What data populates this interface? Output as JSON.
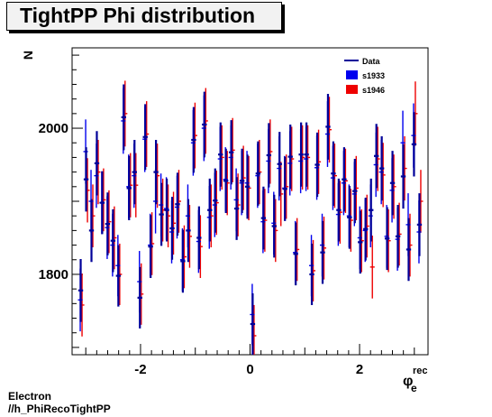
{
  "title": "TightPP Phi distribution",
  "footer": {
    "line1": "Electron",
    "line2": "//h_PhiRecoTightPP"
  },
  "chart_data": {
    "type": "scatter",
    "title": "TightPP Phi distribution",
    "xlabel_main": "φ",
    "xlabel_sub": "e",
    "xlabel_sup": "rec",
    "ylabel": "N",
    "xlim": [
      -3.25,
      3.25
    ],
    "ylim": [
      1690,
      2110
    ],
    "xticks": [
      -2,
      0,
      2
    ],
    "yticks": [
      1800,
      2000
    ],
    "legend": {
      "position": "top-right",
      "entries": [
        "Data",
        "s1933",
        "s1946"
      ]
    },
    "colors": {
      "Data": "#000099",
      "s1933": "#0000ee",
      "s1946": "#ee0000"
    },
    "bin_width": 0.0982,
    "series": [
      {
        "name": "Data",
        "x": [
          -3.093,
          -2.994,
          -2.896,
          -2.798,
          -2.7,
          -2.601,
          -2.503,
          -2.405,
          -2.307,
          -2.209,
          -2.11,
          -2.012,
          -1.914,
          -1.816,
          -1.718,
          -1.619,
          -1.521,
          -1.423,
          -1.325,
          -1.227,
          -1.128,
          -1.03,
          -0.932,
          -0.834,
          -0.736,
          -0.637,
          -0.539,
          -0.441,
          -0.343,
          -0.245,
          -0.146,
          -0.048,
          0.048,
          0.146,
          0.245,
          0.343,
          0.441,
          0.539,
          0.637,
          0.736,
          0.834,
          0.932,
          1.03,
          1.128,
          1.227,
          1.325,
          1.423,
          1.521,
          1.619,
          1.718,
          1.816,
          1.914,
          2.012,
          2.11,
          2.209,
          2.307,
          2.405,
          2.503,
          2.601,
          2.7,
          2.798,
          2.896,
          2.994,
          3.093
        ],
        "y": [
          1778,
          1930,
          1860,
          1952,
          1898,
          1869,
          1846,
          1798,
          2015,
          1918,
          1940,
          1768,
          1988,
          1838,
          1940,
          1882,
          1888,
          1863,
          1896,
          1818,
          1860,
          1984,
          1850,
          2005,
          1888,
          1901,
          1964,
          1928,
          1967,
          1890,
          1928,
          1920,
          1732,
          1938,
          1877,
          1963,
          1866,
          1951,
          1917,
          1961,
          1828,
          1964,
          1964,
          1800,
          1950,
          1830,
          2002,
          1938,
          1888,
          1930,
          1878,
          1914,
          1844,
          1862,
          1888,
          1962,
          1945,
          1849,
          1925,
          1852,
          1934,
          1834,
          1978,
          1868
        ],
        "err": [
          43,
          44,
          43,
          44,
          43,
          43,
          43,
          42,
          45,
          44,
          44,
          42,
          45,
          43,
          44,
          43,
          43,
          43,
          43,
          43,
          43,
          45,
          43,
          45,
          43,
          44,
          44,
          44,
          44,
          43,
          44,
          44,
          42,
          44,
          43,
          44,
          43,
          44,
          44,
          44,
          43,
          44,
          44,
          42,
          44,
          43,
          45,
          44,
          43,
          44,
          43,
          44,
          43,
          43,
          43,
          44,
          44,
          43,
          44,
          43,
          44,
          43,
          44,
          43
        ]
      },
      {
        "name": "s1933",
        "x": [
          -3.093,
          -2.994,
          -2.896,
          -2.798,
          -2.7,
          -2.601,
          -2.503,
          -2.405,
          -2.307,
          -2.209,
          -2.11,
          -2.012,
          -1.914,
          -1.816,
          -1.718,
          -1.619,
          -1.521,
          -1.423,
          -1.325,
          -1.227,
          -1.128,
          -1.03,
          -0.932,
          -0.834,
          -0.736,
          -0.637,
          -0.539,
          -0.441,
          -0.343,
          -0.245,
          -0.146,
          -0.048,
          0.048,
          0.146,
          0.245,
          0.343,
          0.441,
          0.539,
          0.637,
          0.736,
          0.834,
          0.932,
          1.03,
          1.128,
          1.227,
          1.325,
          1.423,
          1.521,
          1.619,
          1.718,
          1.816,
          1.914,
          2.012,
          2.11,
          2.209,
          2.307,
          2.405,
          2.503,
          2.601,
          2.7,
          2.798,
          2.896,
          2.994,
          3.093
        ],
        "y": [
          1765,
          1968,
          1900,
          1935,
          1898,
          1864,
          1840,
          1812,
          2010,
          1920,
          1935,
          1790,
          1985,
          1840,
          1900,
          1895,
          1890,
          1858,
          1892,
          1820,
          1880,
          1980,
          1845,
          2000,
          1878,
          1895,
          1958,
          1930,
          1960,
          1902,
          1925,
          1925,
          1745,
          1935,
          1872,
          1955,
          1870,
          1945,
          1918,
          1952,
          1830,
          1955,
          1958,
          1812,
          1946,
          1840,
          1992,
          1932,
          1882,
          1925,
          1880,
          1910,
          1850,
          1860,
          1880,
          1950,
          1940,
          1852,
          1915,
          1848,
          1980,
          1868,
          1990,
          1858
        ],
        "err": [
          43,
          44,
          43,
          44,
          43,
          43,
          43,
          42,
          45,
          44,
          44,
          42,
          45,
          43,
          44,
          43,
          43,
          43,
          43,
          43,
          43,
          45,
          43,
          45,
          43,
          44,
          44,
          44,
          44,
          43,
          44,
          44,
          42,
          44,
          43,
          44,
          43,
          44,
          44,
          44,
          43,
          44,
          44,
          42,
          44,
          43,
          45,
          44,
          43,
          44,
          43,
          44,
          43,
          43,
          43,
          44,
          44,
          43,
          44,
          43,
          44,
          43,
          44,
          43
        ]
      },
      {
        "name": "s1946",
        "x": [
          -3.093,
          -2.994,
          -2.896,
          -2.798,
          -2.7,
          -2.601,
          -2.503,
          -2.405,
          -2.307,
          -2.209,
          -2.11,
          -2.012,
          -1.914,
          -1.816,
          -1.718,
          -1.619,
          -1.521,
          -1.423,
          -1.325,
          -1.227,
          -1.128,
          -1.03,
          -0.932,
          -0.834,
          -0.736,
          -0.637,
          -0.539,
          -0.441,
          -0.343,
          -0.245,
          -0.146,
          -0.048,
          0.048,
          0.146,
          0.245,
          0.343,
          0.441,
          0.539,
          0.637,
          0.736,
          0.834,
          0.932,
          1.03,
          1.128,
          1.227,
          1.325,
          1.423,
          1.521,
          1.619,
          1.718,
          1.816,
          1.914,
          2.012,
          2.11,
          2.209,
          2.307,
          2.405,
          2.503,
          2.601,
          2.7,
          2.798,
          2.896,
          2.994,
          3.093
        ],
        "y": [
          1758,
          1915,
          1880,
          1940,
          1902,
          1872,
          1850,
          1800,
          2020,
          1922,
          1922,
          1773,
          1992,
          1842,
          1935,
          1888,
          1880,
          1870,
          1900,
          1824,
          1852,
          1990,
          1838,
          2010,
          1880,
          1898,
          1960,
          1925,
          1970,
          1895,
          1932,
          1918,
          1716,
          1940,
          1874,
          1968,
          1860,
          1910,
          1920,
          1958,
          1834,
          1960,
          1960,
          1805,
          1954,
          1836,
          1998,
          1935,
          1885,
          1928,
          1874,
          1918,
          1846,
          1866,
          1810,
          1958,
          1936,
          1846,
          1920,
          1855,
          1945,
          1840,
          2020,
          1900
        ],
        "err": [
          43,
          44,
          43,
          44,
          43,
          43,
          43,
          42,
          45,
          44,
          44,
          42,
          45,
          43,
          44,
          43,
          43,
          43,
          43,
          43,
          43,
          45,
          43,
          45,
          43,
          44,
          44,
          44,
          44,
          43,
          44,
          44,
          42,
          44,
          43,
          44,
          43,
          44,
          44,
          44,
          43,
          44,
          44,
          42,
          44,
          43,
          45,
          44,
          43,
          44,
          43,
          44,
          43,
          43,
          43,
          44,
          44,
          43,
          44,
          43,
          44,
          43,
          44,
          43
        ]
      }
    ]
  }
}
